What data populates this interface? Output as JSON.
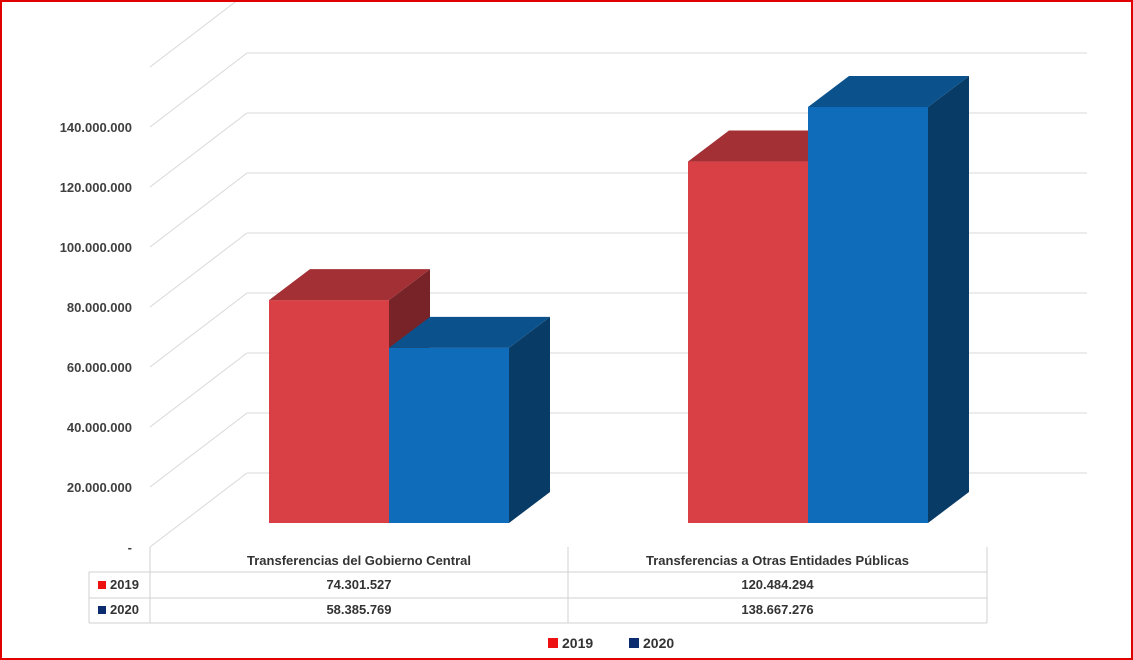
{
  "chart_data": {
    "type": "bar",
    "categories": [
      "Transferencias del Gobierno Central",
      "Transferencias a Otras Entidades Públicas"
    ],
    "series": [
      {
        "name": "2019",
        "values": [
          74301527,
          120484294
        ],
        "labels": [
          "74.301.527",
          "120.484.294"
        ],
        "color": "#d94046"
      },
      {
        "name": "2020",
        "values": [
          58385769,
          138667276
        ],
        "labels": [
          "58.385.769",
          "138.667.276"
        ],
        "color": "#0f6cba"
      }
    ],
    "yticks": [
      {
        "value": 0,
        "label": "-"
      },
      {
        "value": 20000000,
        "label": "20.000.000"
      },
      {
        "value": 40000000,
        "label": "40.000.000"
      },
      {
        "value": 60000000,
        "label": "60.000.000"
      },
      {
        "value": 80000000,
        "label": "80.000.000"
      },
      {
        "value": 100000000,
        "label": "100.000.000"
      },
      {
        "value": 120000000,
        "label": "120.000.000"
      },
      {
        "value": 140000000,
        "label": "140.000.000"
      }
    ],
    "ylim": [
      0,
      160000000
    ],
    "grid": true,
    "legend": "bottom",
    "projection": "3d",
    "data_table": true,
    "legend_marker_colors": {
      "2019": "#ee1111",
      "2020": "#0b2c6e"
    },
    "border_color": "#e00000"
  }
}
